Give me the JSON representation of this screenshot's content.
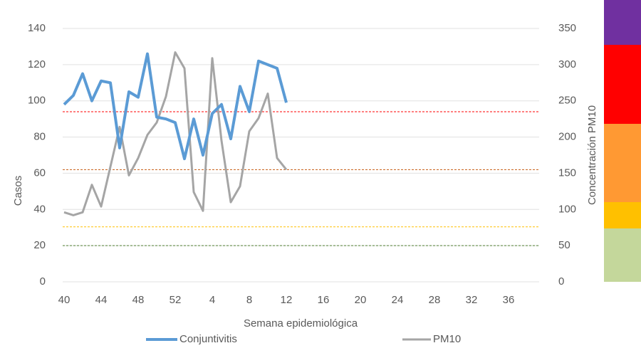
{
  "chart_data": {
    "type": "line",
    "xlabel": "Semana epidemiológica",
    "ylabel": "Casos",
    "y2label": "Concentración PM10",
    "categories": [
      "40",
      null,
      null,
      null,
      "44",
      null,
      null,
      null,
      "48",
      null,
      null,
      null,
      "52",
      null,
      null,
      null,
      "4",
      null,
      null,
      null,
      "8",
      null,
      null,
      null,
      "12",
      null,
      null,
      null,
      "16",
      null,
      null,
      null,
      "20",
      null,
      null,
      null,
      "24",
      null,
      null,
      null,
      "28",
      null,
      null,
      null,
      "32",
      null,
      null,
      null,
      "36",
      null,
      null,
      null
    ],
    "series": [
      {
        "name": "Conjuntivitis",
        "color": "#5b9bd5",
        "values": [
          98,
          103,
          115,
          100,
          111,
          110,
          74,
          105,
          102,
          126,
          91,
          90,
          88,
          68,
          90,
          70,
          93,
          98,
          79,
          108,
          94,
          122,
          120,
          118,
          99,
          null,
          null,
          null,
          null,
          null,
          null,
          null,
          null,
          null,
          null,
          null,
          null,
          null,
          null,
          null,
          null,
          null,
          null,
          null,
          null,
          null,
          null,
          null,
          null,
          null,
          null,
          null
        ]
      },
      {
        "name": "PM10",
        "color": "#a5a5a5",
        "axis": "y2",
        "values": [
          96,
          92,
          96,
          134,
          104,
          159,
          214,
          147,
          171,
          203,
          220,
          256,
          317,
          295,
          124,
          98,
          309,
          195,
          110,
          132,
          208,
          226,
          260,
          171,
          155,
          null,
          null,
          null,
          null,
          null,
          null,
          null,
          null,
          null,
          null,
          null,
          null,
          null,
          null,
          null,
          null,
          null,
          null,
          null,
          null,
          null,
          null,
          null,
          null,
          null,
          null,
          null
        ]
      }
    ],
    "ylim": [
      0,
      140
    ],
    "yticks": [
      0,
      20,
      40,
      60,
      80,
      100,
      120,
      140
    ],
    "y2lim": [
      0,
      350
    ],
    "y2ticks": [
      0,
      50,
      100,
      150,
      200,
      250,
      300,
      350
    ],
    "grid": true,
    "reference_lines": [
      {
        "axis": "y2",
        "value": 235,
        "color": "#ff0000"
      },
      {
        "axis": "y2",
        "value": 155,
        "color": "#c55a11"
      },
      {
        "axis": "y2",
        "value": 76,
        "color": "#ffc000"
      },
      {
        "axis": "y2",
        "value": 50,
        "color": "#548235"
      }
    ],
    "legend": "bottom"
  }
}
